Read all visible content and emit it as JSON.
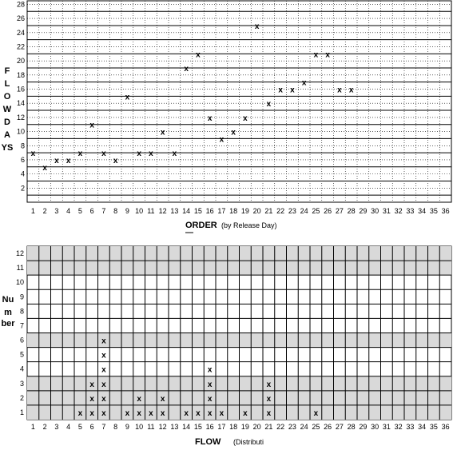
{
  "chart_data": [
    {
      "type": "scatter",
      "marker": "x",
      "ylabel": "FLOW DAYS",
      "ylabel_lines": [
        "F",
        "L",
        "O",
        "W",
        "D",
        "A",
        "YS"
      ],
      "xlabel_main": "ORDER",
      "xlabel_sub": "(by Release Day)",
      "x_ticks": [
        1,
        2,
        3,
        4,
        5,
        6,
        7,
        8,
        9,
        10,
        11,
        12,
        13,
        14,
        15,
        16,
        17,
        18,
        19,
        20,
        21,
        22,
        23,
        24,
        25,
        26,
        27,
        28,
        29,
        30,
        31,
        32,
        33,
        34,
        35,
        36
      ],
      "y_ticks": [
        2,
        4,
        6,
        8,
        10,
        12,
        14,
        16,
        18,
        20,
        22,
        24,
        26,
        28
      ],
      "xlim": [
        1,
        36
      ],
      "ylim": [
        0,
        28.5
      ],
      "grid": true,
      "points": [
        {
          "x": 1,
          "y": 7
        },
        {
          "x": 2,
          "y": 5
        },
        {
          "x": 3,
          "y": 6
        },
        {
          "x": 4,
          "y": 6
        },
        {
          "x": 5,
          "y": 7
        },
        {
          "x": 6,
          "y": 11
        },
        {
          "x": 7,
          "y": 7
        },
        {
          "x": 8,
          "y": 6
        },
        {
          "x": 9,
          "y": 15
        },
        {
          "x": 10,
          "y": 7
        },
        {
          "x": 11,
          "y": 7
        },
        {
          "x": 12,
          "y": 10
        },
        {
          "x": 13,
          "y": 7
        },
        {
          "x": 14,
          "y": 19
        },
        {
          "x": 15,
          "y": 21
        },
        {
          "x": 16,
          "y": 12
        },
        {
          "x": 17,
          "y": 9
        },
        {
          "x": 18,
          "y": 10
        },
        {
          "x": 19,
          "y": 12
        },
        {
          "x": 20,
          "y": 25
        },
        {
          "x": 21,
          "y": 14
        },
        {
          "x": 22,
          "y": 16
        },
        {
          "x": 23,
          "y": 16
        },
        {
          "x": 24,
          "y": 17
        },
        {
          "x": 25,
          "y": 21
        },
        {
          "x": 26,
          "y": 21
        },
        {
          "x": 27,
          "y": 16
        },
        {
          "x": 28,
          "y": 16
        }
      ],
      "marker_label": "x"
    },
    {
      "type": "dot-histogram",
      "marker": "x",
      "ylabel": "Number",
      "ylabel_lines": [
        "Nu",
        "m",
        "ber"
      ],
      "xlabel_main": "FLOW",
      "xlabel_sub": "(Distributi",
      "x_ticks": [
        1,
        2,
        3,
        4,
        5,
        6,
        7,
        8,
        9,
        10,
        11,
        12,
        13,
        14,
        15,
        16,
        17,
        18,
        19,
        20,
        21,
        22,
        23,
        24,
        25,
        26,
        27,
        28,
        29,
        30,
        31,
        32,
        33,
        34,
        35,
        36
      ],
      "y_ticks": [
        1,
        2,
        3,
        4,
        5,
        6,
        7,
        8,
        9,
        10,
        11,
        12
      ],
      "xlim": [
        1,
        36
      ],
      "ylim": [
        1,
        12
      ],
      "grid": true,
      "x": [
        5,
        6,
        7,
        9,
        10,
        11,
        12,
        14,
        15,
        16,
        17,
        19,
        21,
        25
      ],
      "values": [
        1,
        3,
        6,
        1,
        2,
        1,
        2,
        1,
        1,
        4,
        1,
        1,
        3,
        1
      ],
      "marker_label": "x"
    }
  ]
}
